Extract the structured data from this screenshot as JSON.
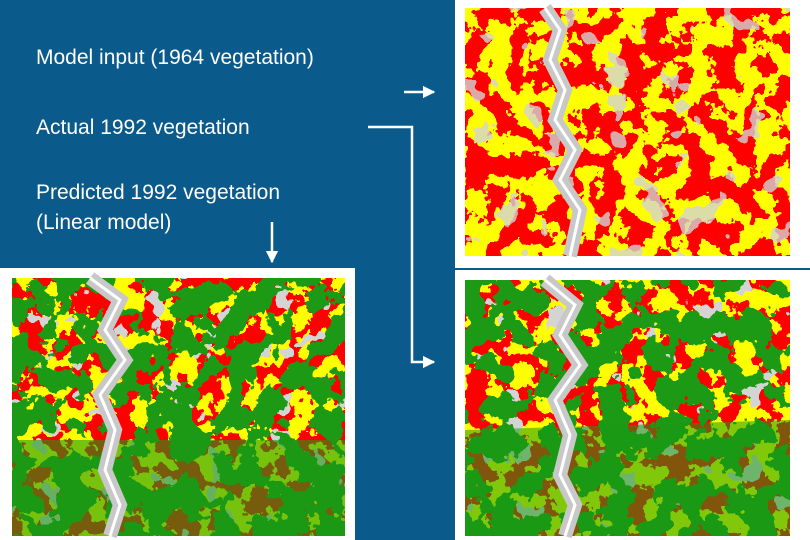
{
  "slide": {
    "input_label": "Model input (1964 vegetation)",
    "actual_label": "Actual 1992 vegetation",
    "predicted_label": "Predicted 1992 vegetation",
    "predicted_model": "(Linear model)"
  }
}
